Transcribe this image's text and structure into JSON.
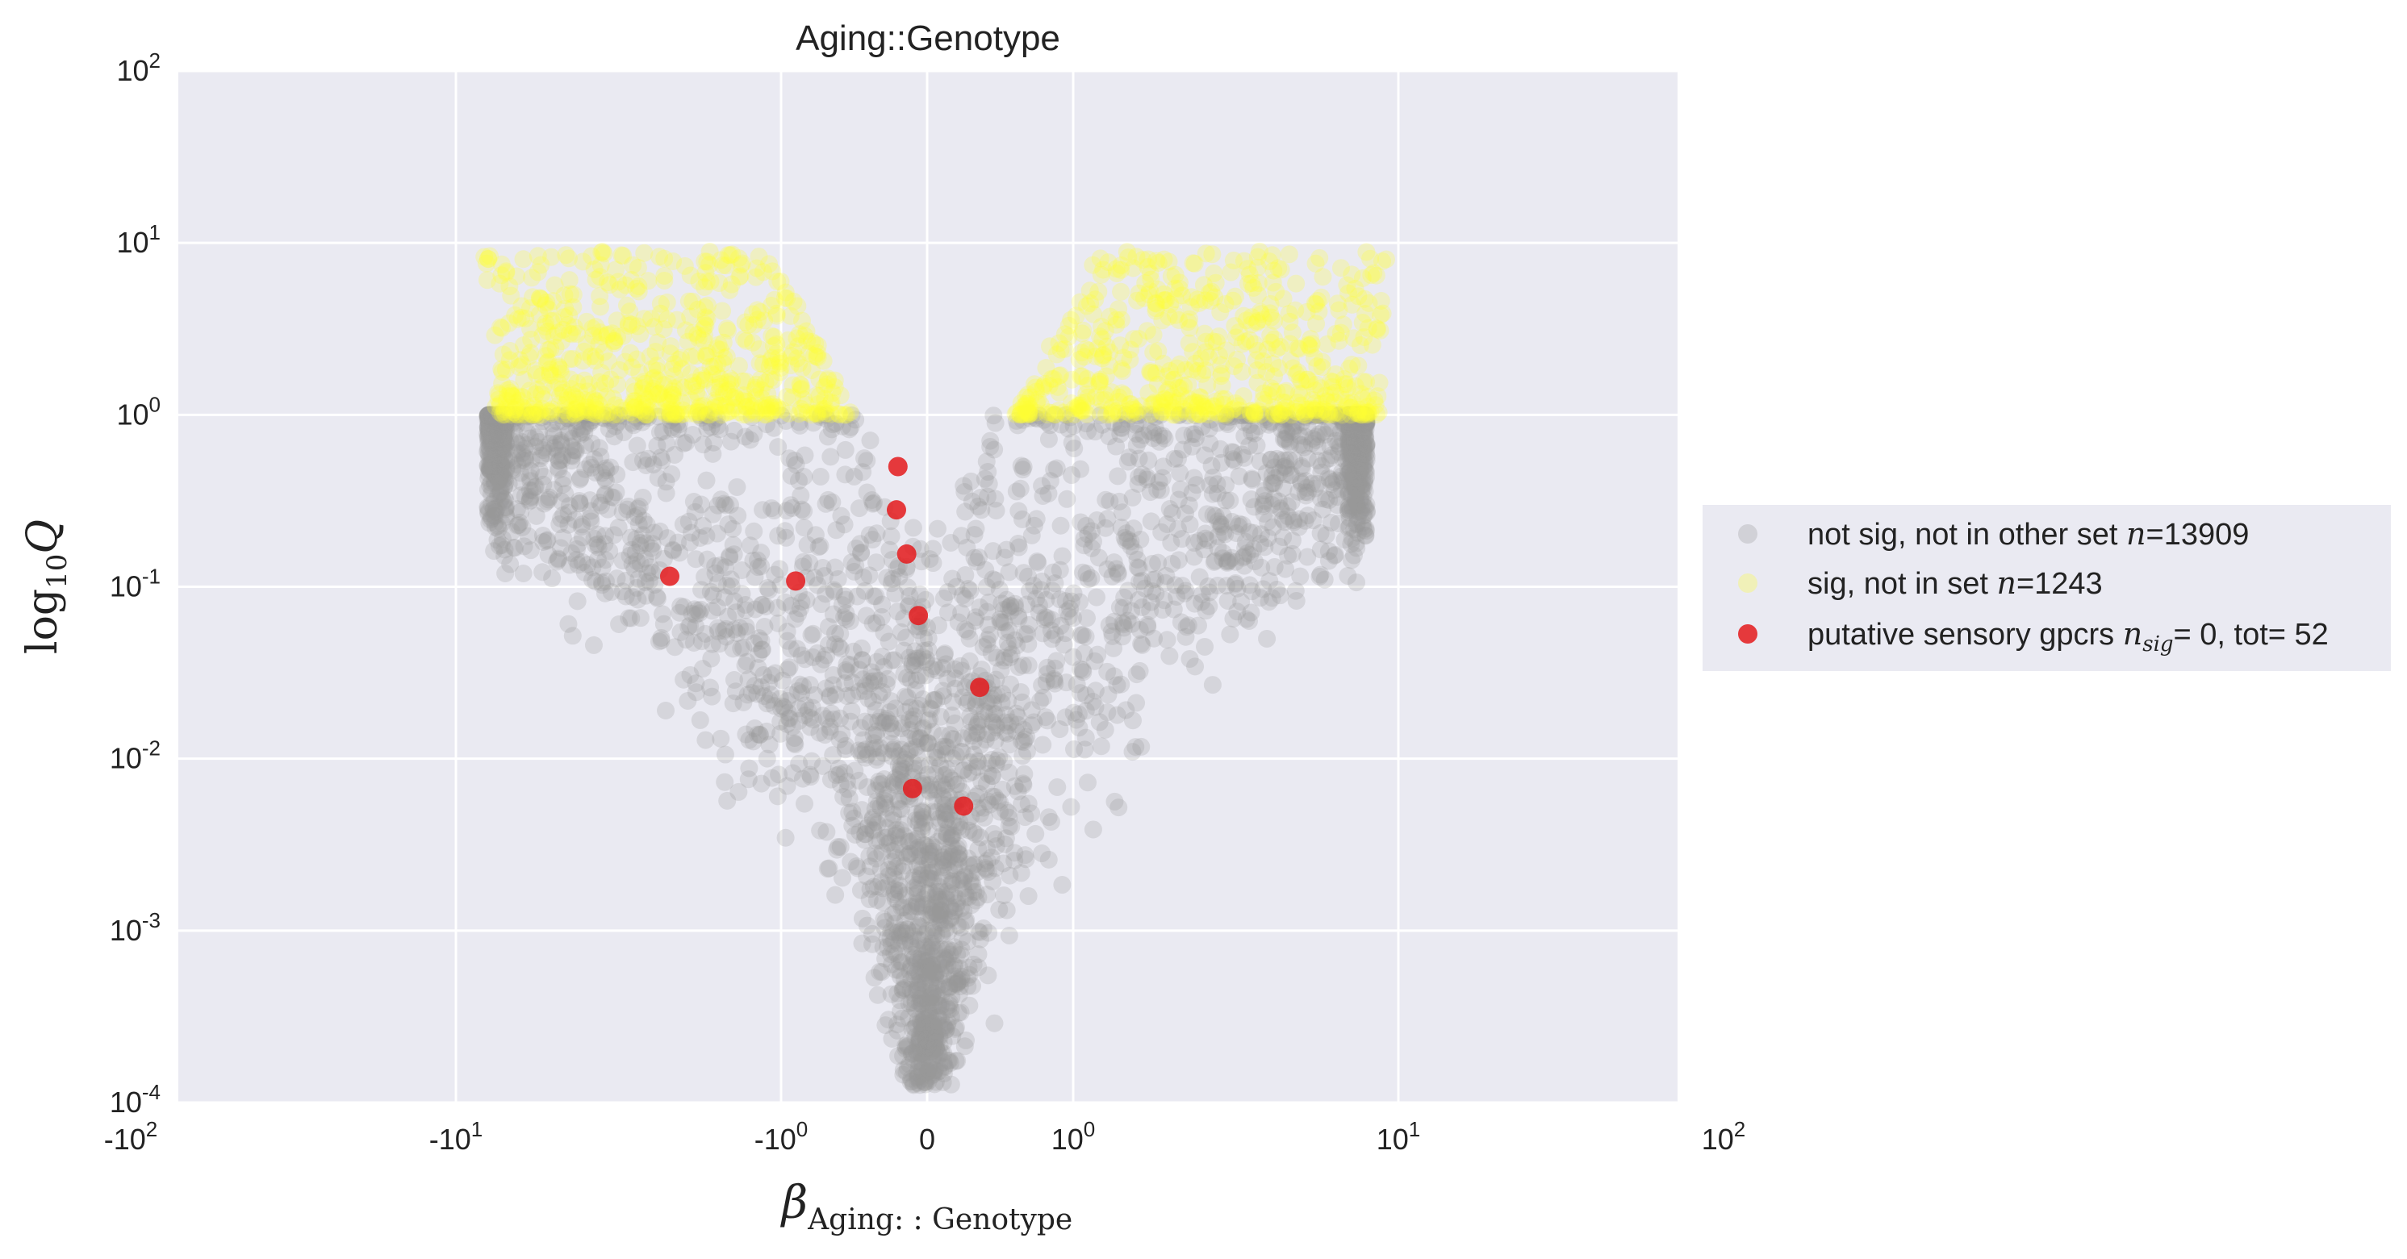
{
  "chart_data": {
    "type": "scatter",
    "title": "Aging::Genotype",
    "xlabel": {
      "symbol": "β",
      "subscript": "Aging: : Genotype"
    },
    "ylabel": {
      "main": "log",
      "sub": "10",
      "var": "Q"
    },
    "x_scale": "symlog",
    "y_scale": "log",
    "xlim": [
      -130,
      130
    ],
    "ylim": [
      0.0001,
      100
    ],
    "grid": true,
    "x_ticks": [
      {
        "value": -100,
        "label": "-10",
        "exp": "2"
      },
      {
        "value": -10,
        "label": "-10",
        "exp": "1"
      },
      {
        "value": -1,
        "label": "-10",
        "exp": "0"
      },
      {
        "value": 0,
        "label": "0",
        "exp": ""
      },
      {
        "value": 1,
        "label": "10",
        "exp": "0"
      },
      {
        "value": 10,
        "label": "10",
        "exp": "1"
      },
      {
        "value": 100,
        "label": "10",
        "exp": "2"
      }
    ],
    "y_ticks": [
      {
        "value": 0.0001,
        "label": "10",
        "exp": "-4"
      },
      {
        "value": 0.001,
        "label": "10",
        "exp": "-3"
      },
      {
        "value": 0.01,
        "label": "10",
        "exp": "-2"
      },
      {
        "value": 0.1,
        "label": "10",
        "exp": "-1"
      },
      {
        "value": 1,
        "label": "10",
        "exp": "0"
      },
      {
        "value": 10,
        "label": "10",
        "exp": "1"
      },
      {
        "value": 100,
        "label": "10",
        "exp": "2"
      }
    ],
    "legend_position": "center-right, outside",
    "series": [
      {
        "name": "not sig, not in other set",
        "legend_math": "n",
        "legend_suffix": "=13909",
        "count": 13909,
        "color": "#999999",
        "opacity": 0.25,
        "description_points": "v-shaped cloud of ~14k genes below q=1"
      },
      {
        "name": "sig, not in set",
        "legend_math": "n",
        "legend_suffix": "=1243",
        "count": 1243,
        "color": "#ffff33",
        "opacity": 0.25
      },
      {
        "name": "putative sensory gpcrs",
        "legend_math": "n",
        "legend_math_sub": "sig",
        "legend_suffix": "= 0, tot= 52",
        "count": 52,
        "color": "#e41a1c",
        "opacity": 0.85,
        "points": [
          {
            "x": -0.2,
            "y": 0.5
          },
          {
            "x": -0.21,
            "y": 0.28
          },
          {
            "x": -0.14,
            "y": 0.155
          },
          {
            "x": -0.06,
            "y": 0.068
          },
          {
            "x": -2.2,
            "y": 0.115
          },
          {
            "x": -0.9,
            "y": 0.108
          },
          {
            "x": 0.36,
            "y": 0.026
          },
          {
            "x": -0.1,
            "y": 0.0067
          },
          {
            "x": 0.25,
            "y": 0.0053
          }
        ]
      }
    ]
  },
  "colors": {
    "plot_bg": "#eaeaf2",
    "grid": "#ffffff",
    "legend_bg": "#eaeaf2"
  }
}
